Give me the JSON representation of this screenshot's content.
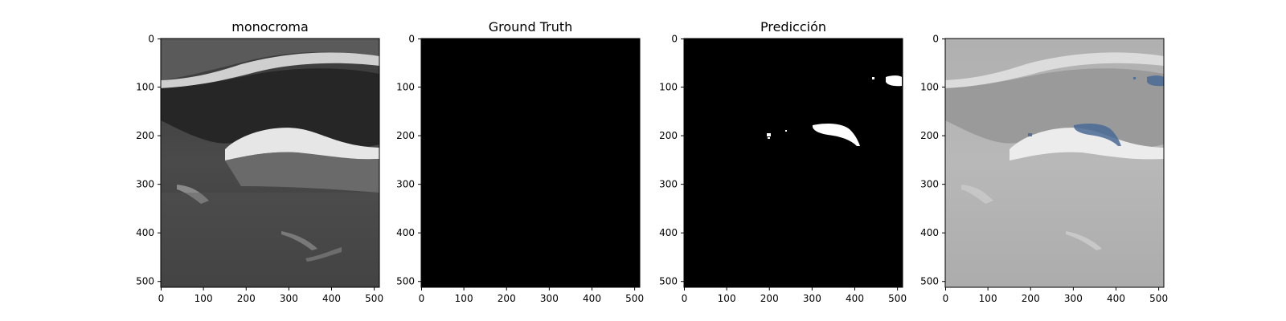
{
  "panels": [
    {
      "title": "monocroma"
    },
    {
      "title": "Ground Truth"
    },
    {
      "title": "Predicción"
    },
    {
      "title": ""
    }
  ],
  "axes": {
    "x_ticks": [
      "0",
      "100",
      "200",
      "300",
      "400",
      "500"
    ],
    "y_ticks": [
      "0",
      "100",
      "200",
      "300",
      "400",
      "500"
    ]
  },
  "colors": {
    "background": "#ffffff",
    "mask_background": "#000000",
    "mask_foreground": "#ffffff",
    "overlay_mask": "#4a6a95",
    "frame": "#000000"
  }
}
